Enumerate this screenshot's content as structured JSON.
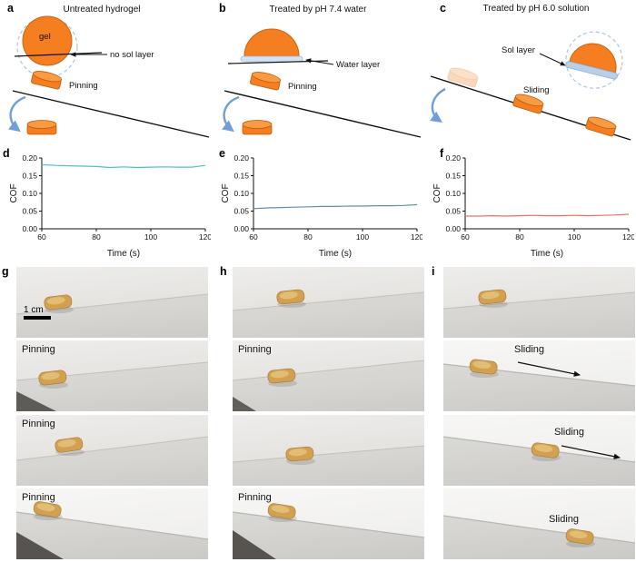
{
  "panels": {
    "a": {
      "letter": "a",
      "title": "Untreated hydrogel",
      "gel_label": "gel",
      "annotation": "no sol layer",
      "state_label": "Pinning"
    },
    "b": {
      "letter": "b",
      "title": "Treated by pH 7.4 water",
      "annotation": "Water layer",
      "state_label": "Pinning"
    },
    "c": {
      "letter": "c",
      "title": "Treated by pH 6.0 solution",
      "annotation": "Sol layer",
      "state_label": "Sliding"
    }
  },
  "chart_data": [
    {
      "type": "line",
      "panel_letter": "d",
      "xlabel": "Time (s)",
      "ylabel": "COF",
      "xlim": [
        60,
        120
      ],
      "ylim": [
        0,
        0.2
      ],
      "xticks": [
        60,
        80,
        100,
        120
      ],
      "yticks": [
        0,
        0.05,
        0.1,
        0.15,
        0.2
      ],
      "grid": false,
      "color": "#45c6c9",
      "x": [
        60,
        65,
        70,
        75,
        80,
        85,
        90,
        95,
        100,
        105,
        110,
        115,
        120
      ],
      "values": [
        0.181,
        0.179,
        0.178,
        0.177,
        0.176,
        0.173,
        0.175,
        0.173,
        0.174,
        0.175,
        0.174,
        0.174,
        0.179
      ]
    },
    {
      "type": "line",
      "panel_letter": "e",
      "xlabel": "Time (s)",
      "ylabel": "COF",
      "xlim": [
        60,
        120
      ],
      "ylim": [
        0,
        0.2
      ],
      "xticks": [
        60,
        80,
        100,
        120
      ],
      "yticks": [
        0,
        0.05,
        0.1,
        0.15,
        0.2
      ],
      "grid": false,
      "color": "#5f8fb4",
      "x": [
        60,
        65,
        70,
        75,
        80,
        85,
        90,
        95,
        100,
        105,
        110,
        115,
        120
      ],
      "values": [
        0.057,
        0.059,
        0.06,
        0.061,
        0.062,
        0.063,
        0.063,
        0.064,
        0.064,
        0.065,
        0.065,
        0.066,
        0.068
      ]
    },
    {
      "type": "line",
      "panel_letter": "f",
      "xlabel": "Time (s)",
      "ylabel": "COF",
      "xlim": [
        60,
        120
      ],
      "ylim": [
        0,
        0.2
      ],
      "xticks": [
        60,
        80,
        100,
        120
      ],
      "yticks": [
        0,
        0.05,
        0.1,
        0.15,
        0.2
      ],
      "grid": false,
      "color": "#f4705c",
      "x": [
        60,
        65,
        70,
        75,
        80,
        85,
        90,
        95,
        100,
        105,
        110,
        115,
        120
      ],
      "values": [
        0.036,
        0.036,
        0.037,
        0.036,
        0.037,
        0.038,
        0.037,
        0.037,
        0.038,
        0.037,
        0.038,
        0.039,
        0.041
      ]
    }
  ],
  "photos": {
    "g": {
      "letter": "g",
      "scale_bar": "1 cm",
      "rows": [
        {
          "label": ""
        },
        {
          "label": "Pinning"
        },
        {
          "label": "Pinning"
        },
        {
          "label": "Pinning"
        }
      ]
    },
    "h": {
      "letter": "h",
      "rows": [
        {
          "label": ""
        },
        {
          "label": "Pinning"
        },
        {
          "label": ""
        },
        {
          "label": "Pinning"
        }
      ]
    },
    "i": {
      "letter": "i",
      "rows": [
        {
          "label": ""
        },
        {
          "label": "Sliding"
        },
        {
          "label": "Sliding"
        },
        {
          "label": "Sliding"
        }
      ]
    }
  }
}
